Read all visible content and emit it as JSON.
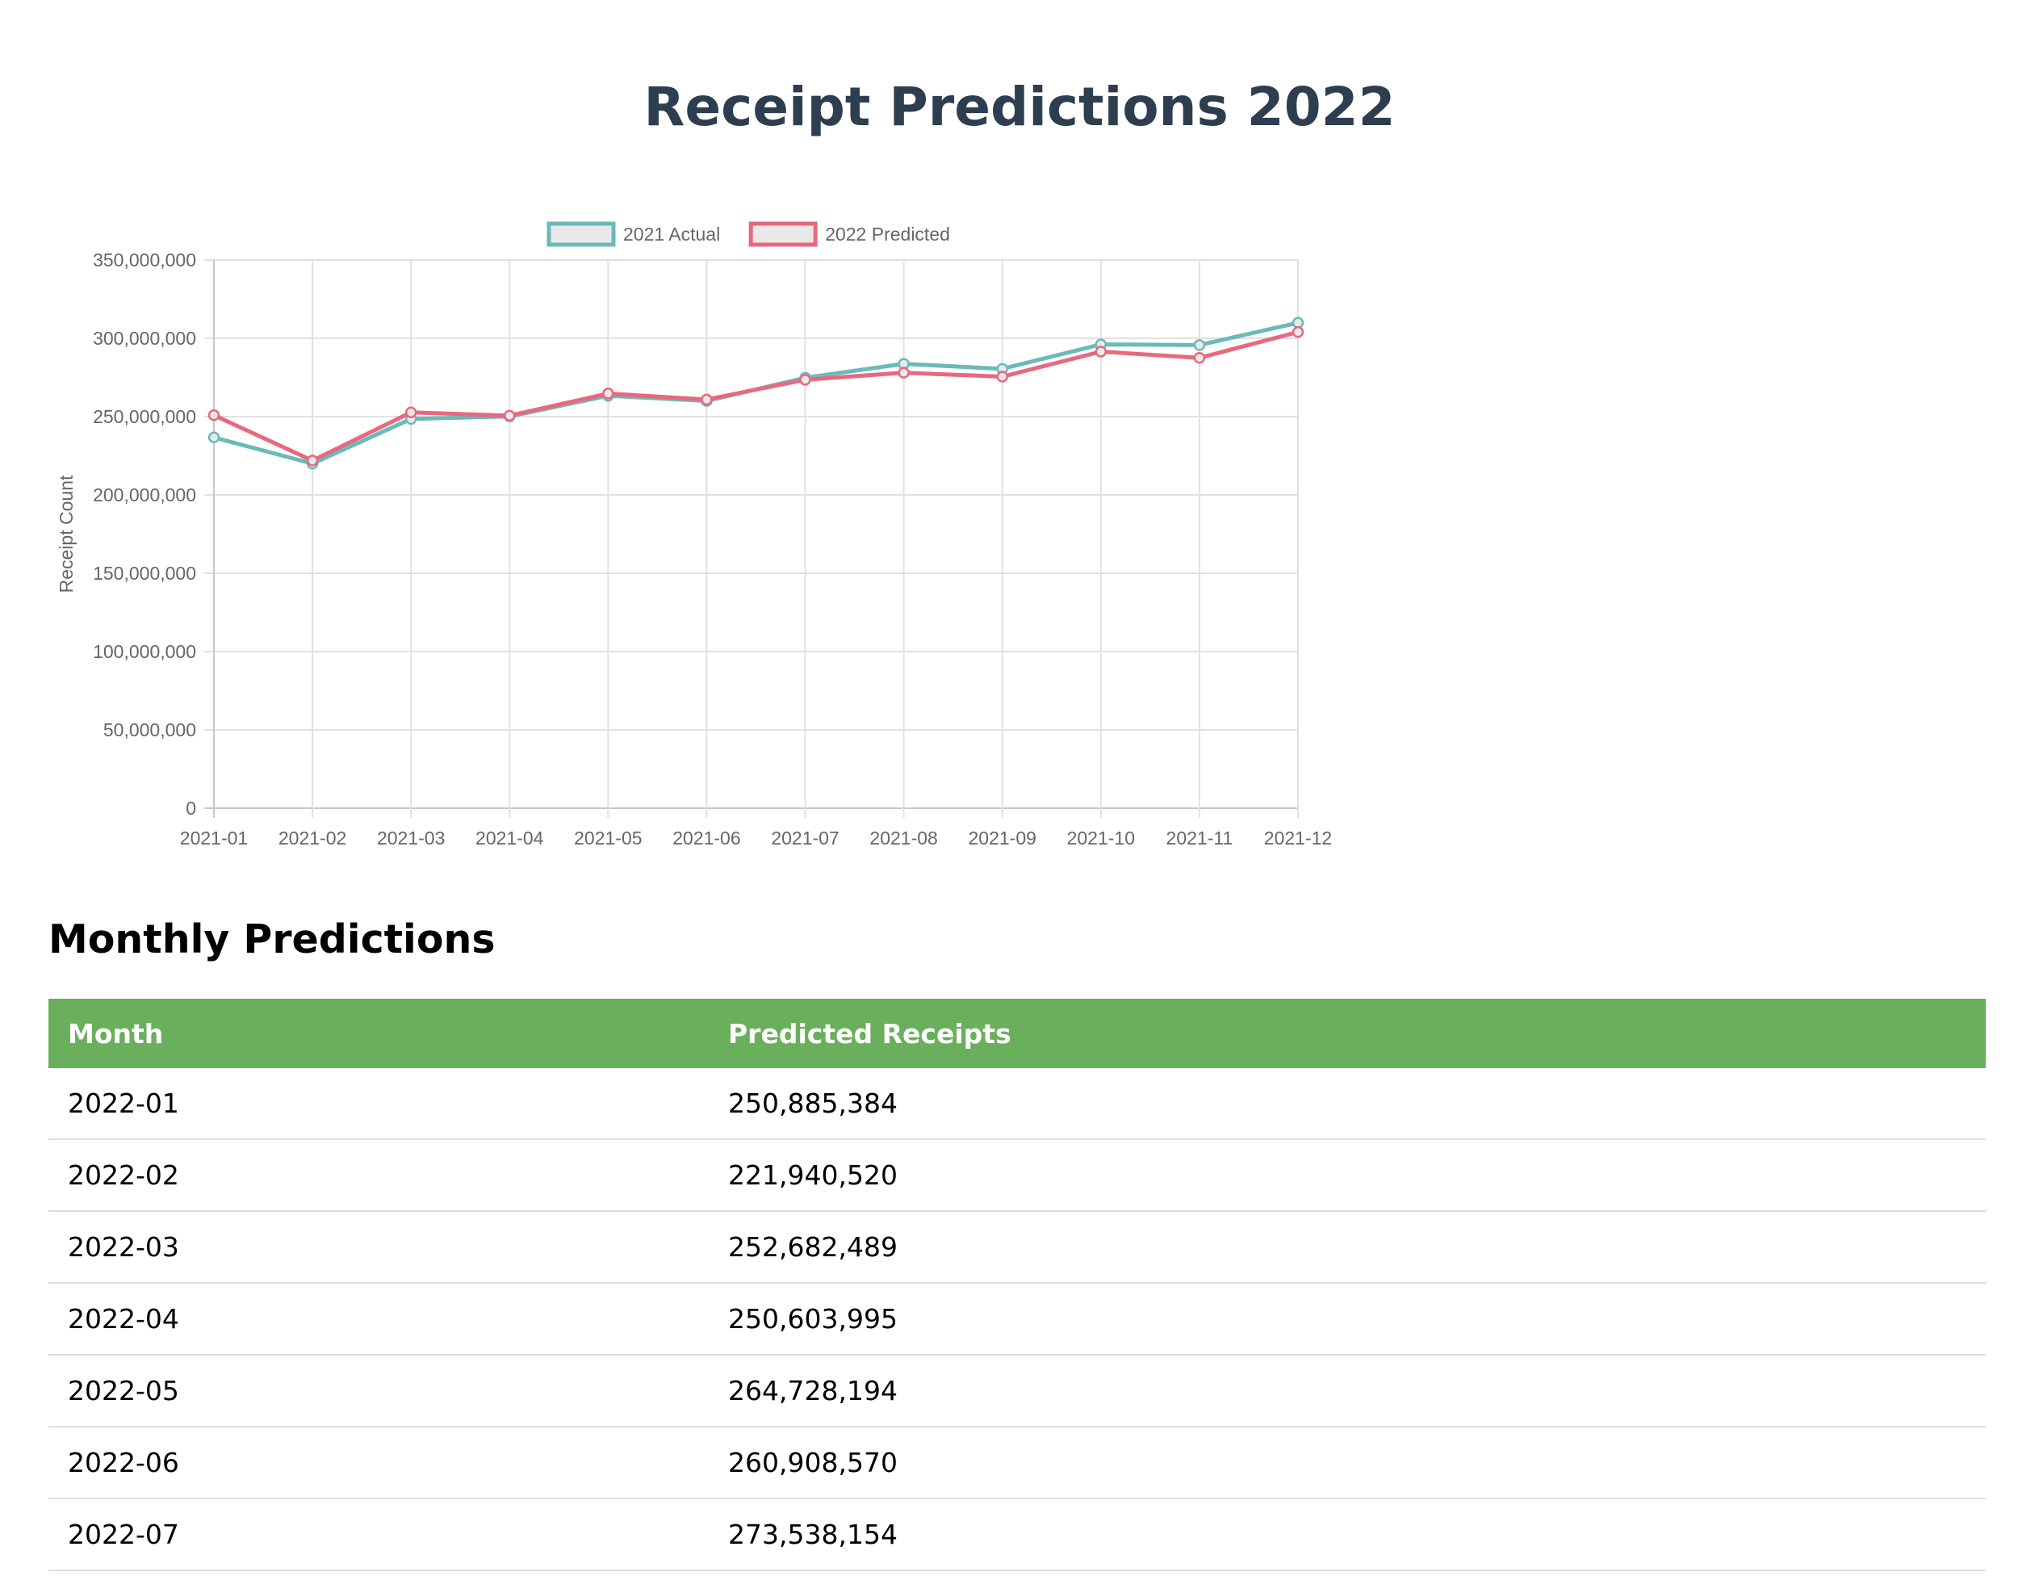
{
  "page": {
    "title": "Receipt Predictions 2022",
    "section_title": "Monthly Predictions"
  },
  "colors": {
    "actual": "#6bbaba",
    "predicted": "#e8687f",
    "header_bg": "#6aaf5c",
    "title": "#2d3e50"
  },
  "chart_data": {
    "type": "line",
    "title": "",
    "xlabel": "",
    "ylabel": "Receipt Count",
    "ylim": [
      0,
      350000000
    ],
    "y_ticks": [
      0,
      50000000,
      100000000,
      150000000,
      200000000,
      250000000,
      300000000,
      350000000
    ],
    "y_tick_labels": [
      "0",
      "50,000,000",
      "100,000,000",
      "150,000,000",
      "200,000,000",
      "250,000,000",
      "300,000,000",
      "350,000,000"
    ],
    "grid": true,
    "legend_position": "top",
    "categories": [
      "2021-01",
      "2021-02",
      "2021-03",
      "2021-04",
      "2021-05",
      "2021-06",
      "2021-07",
      "2021-08",
      "2021-09",
      "2021-10",
      "2021-11",
      "2021-12"
    ],
    "series": [
      {
        "name": "2021 Actual",
        "color": "#6bbaba",
        "values": [
          236700000,
          220000000,
          248500000,
          250100000,
          263300000,
          260000000,
          274800000,
          283700000,
          280500000,
          296100000,
          295700000,
          309900000
        ]
      },
      {
        "name": "2022 Predicted",
        "color": "#e8687f",
        "values": [
          250885384,
          221940520,
          252682489,
          250603995,
          264728194,
          260908570,
          273538154,
          278000000,
          275500000,
          291500000,
          287500000,
          304000000
        ]
      }
    ]
  },
  "table": {
    "headers": [
      "Month",
      "Predicted Receipts"
    ],
    "rows": [
      [
        "2022-01",
        "250,885,384"
      ],
      [
        "2022-02",
        "221,940,520"
      ],
      [
        "2022-03",
        "252,682,489"
      ],
      [
        "2022-04",
        "250,603,995"
      ],
      [
        "2022-05",
        "264,728,194"
      ],
      [
        "2022-06",
        "260,908,570"
      ],
      [
        "2022-07",
        "273,538,154"
      ]
    ]
  }
}
